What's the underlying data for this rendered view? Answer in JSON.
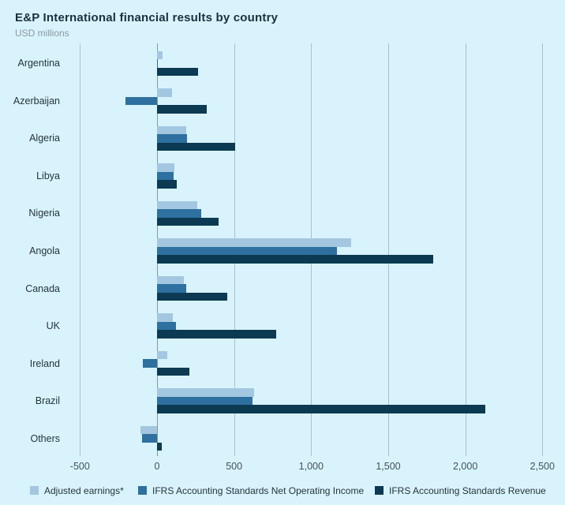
{
  "title": "E&P International financial results by country",
  "subtitle": "USD millions",
  "colors": {
    "background": "#d9f3fc",
    "adjusted_earnings": "#a3c7e0",
    "net_operating_income": "#2e709f",
    "revenue": "#0c3a52",
    "gridline": "#a9c0ca",
    "zero_line": "#7f9aa5"
  },
  "chart_data": {
    "type": "bar",
    "orientation": "horizontal",
    "title": "E&P International financial results by country",
    "subtitle": "USD millions",
    "unit": "USD millions",
    "categories": [
      "Argentina",
      "Azerbaijan",
      "Algeria",
      "Libya",
      "Nigeria",
      "Angola",
      "Canada",
      "UK",
      "Ireland",
      "Brazil",
      "Others"
    ],
    "series": [
      {
        "name": "Adjusted earnings*",
        "color": "#a3c7e0",
        "values": [
          35,
          95,
          190,
          115,
          260,
          1260,
          175,
          105,
          65,
          630,
          -105
        ]
      },
      {
        "name": "IFRS Accounting Standards Net Operating Income",
        "color": "#2e709f",
        "values": [
          5,
          -205,
          195,
          110,
          285,
          1170,
          190,
          125,
          -90,
          620,
          -95
        ]
      },
      {
        "name": "IFRS Accounting Standards Revenue",
        "color": "#0c3a52",
        "values": [
          265,
          325,
          505,
          130,
          400,
          1790,
          455,
          775,
          210,
          2130,
          30
        ]
      }
    ],
    "xticks": [
      -500,
      0,
      500,
      1000,
      1500,
      2000,
      2500
    ],
    "xtick_labels": [
      "-500",
      "0",
      "500",
      "1,000",
      "1,500",
      "2,000",
      "2,500"
    ],
    "xlim": [
      -650,
      2565
    ],
    "grid": "vertical",
    "legend_position": "bottom"
  },
  "legend": {
    "items": [
      {
        "label": "Adjusted earnings*",
        "color": "#a3c7e0"
      },
      {
        "label": "IFRS Accounting Standards Net Operating Income",
        "color": "#2e709f"
      },
      {
        "label": "IFRS Accounting Standards Revenue",
        "color": "#0c3a52"
      }
    ]
  }
}
